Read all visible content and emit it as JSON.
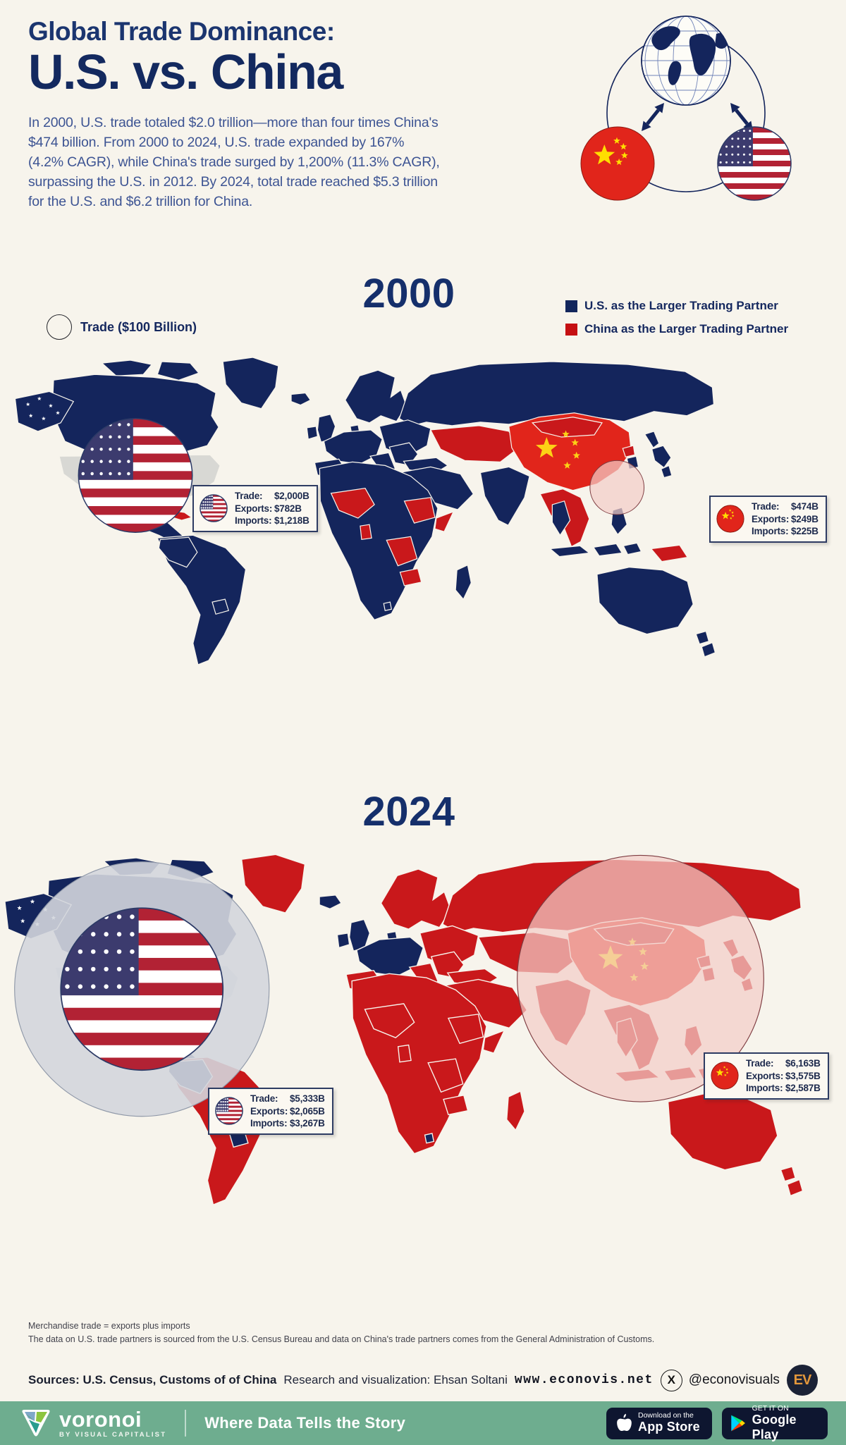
{
  "header": {
    "title_line1": "Global Trade Dominance:",
    "title_line2": "U.S. vs. China",
    "intro": "In 2000, U.S. trade totaled $2.0 trillion—more than four times China's $474 billion. From 2000 to 2024, U.S. trade expanded by 167% (4.2% CAGR), while China's trade surged by 1,200% (11.3% CAGR), surpassing the U.S. in 2012. By 2024, total trade reached $5.3 trillion for the U.S. and $6.2 trillion for China."
  },
  "legend": {
    "size_label": "Trade ($100 Billion)",
    "us_label": "U.S. as the Larger Trading Partner",
    "china_label": "China as the Larger Trading Partner"
  },
  "callout_labels": {
    "trade": "Trade:",
    "exports": "Exports:",
    "imports": "Imports:"
  },
  "maps": [
    {
      "year": "2000",
      "us": {
        "trade": "$2,000B",
        "exports": "$782B",
        "imports": "$1,218B"
      },
      "china": {
        "trade": "$474B",
        "exports": "$249B",
        "imports": "$225B"
      }
    },
    {
      "year": "2024",
      "us": {
        "trade": "$5,333B",
        "exports": "$2,065B",
        "imports": "$3,267B"
      },
      "china": {
        "trade": "$6,163B",
        "exports": "$3,575B",
        "imports": "$2,587B"
      }
    }
  ],
  "footnotes": [
    "Merchandise trade = exports plus imports",
    "The data on U.S. trade partners is sourced from the U.S. Census Bureau and data on China's trade partners comes from the General Administration of Customs."
  ],
  "credits": {
    "sources": "Sources: U.S. Census, Customs of of China",
    "research": "Research and visualization: Ehsan Soltani",
    "website": "www.econovis.net",
    "social": "@econovisuals",
    "x_glyph": "X",
    "badge": "EV"
  },
  "footer_bar": {
    "brand": "voronoi",
    "brand_sub": "BY VISUAL CAPITALIST",
    "tagline": "Where Data Tells the Story",
    "appstore_line1": "Download on the",
    "appstore_line2": "App Store",
    "googleplay_line1": "GET IT ON",
    "googleplay_line2": "Google Play"
  },
  "colors": {
    "background": "#f7f4ec",
    "us_navy": "#14255c",
    "china_red": "#c9181b",
    "china_flag_red": "#e1251b",
    "title_navy": "#13295f",
    "footer_green": "#6ead8f"
  }
}
